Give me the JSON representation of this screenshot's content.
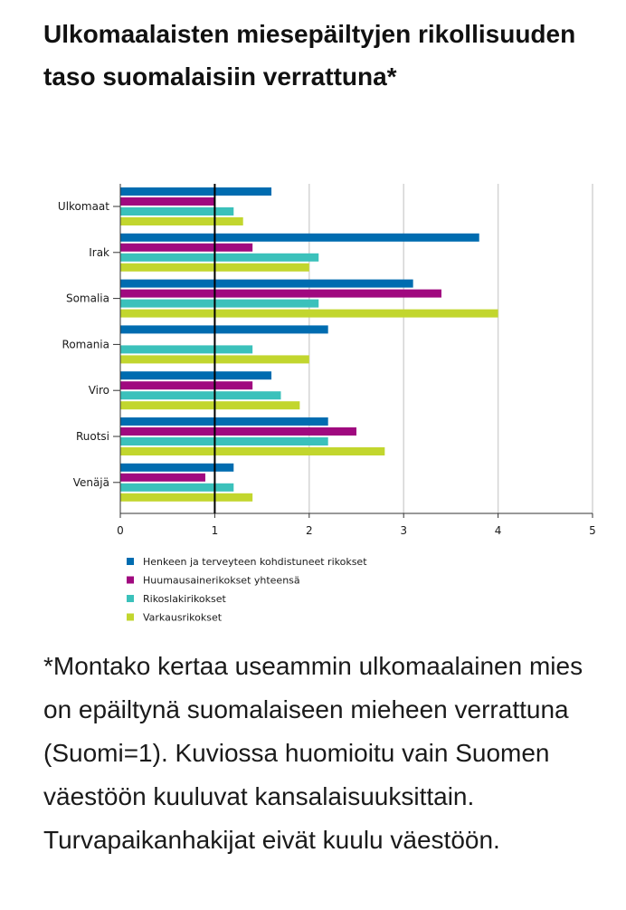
{
  "title": "Ulkomaalaisten miesepäiltyjen rikollisuuden taso suomalaisiin verrattuna*",
  "caption": "*Montako kertaa useammin ulkomaalainen mies on epäiltynä suomalaiseen mieheen verrattuna (Suomi=1). Kuviossa huomioitu vain Suomen väestöön kuuluvat kansalaisuuksittain. Turvapaikanhakijat eivät kuulu väestöön.",
  "chart_data": {
    "type": "bar",
    "orientation": "horizontal",
    "categories": [
      "Ulkomaat",
      "Irak",
      "Somalia",
      "Romania",
      "Viro",
      "Ruotsi",
      "Venäjä"
    ],
    "series": [
      {
        "name": "Henkeen ja terveyteen kohdistuneet rikokset",
        "color": "#006cb0",
        "values": [
          1.6,
          3.8,
          3.1,
          2.2,
          1.6,
          2.2,
          1.2
        ]
      },
      {
        "name": "Huumausainerikokset yhteensä",
        "color": "#a0097f",
        "values": [
          1.0,
          1.4,
          3.4,
          null,
          1.4,
          2.5,
          0.9
        ]
      },
      {
        "name": "Rikoslakirikokset",
        "color": "#3bc1bb",
        "values": [
          1.2,
          2.1,
          2.1,
          1.4,
          1.7,
          2.2,
          1.2
        ]
      },
      {
        "name": "Varkausrikokset",
        "color": "#c2d62e",
        "values": [
          1.3,
          2.0,
          4.0,
          2.0,
          1.9,
          2.8,
          1.4
        ]
      }
    ],
    "xlim": [
      0,
      5
    ],
    "xticks": [
      "0",
      "1",
      "2",
      "3",
      "4",
      "5"
    ],
    "reference_line": 1,
    "grid": true,
    "legend_position": "bottom"
  }
}
